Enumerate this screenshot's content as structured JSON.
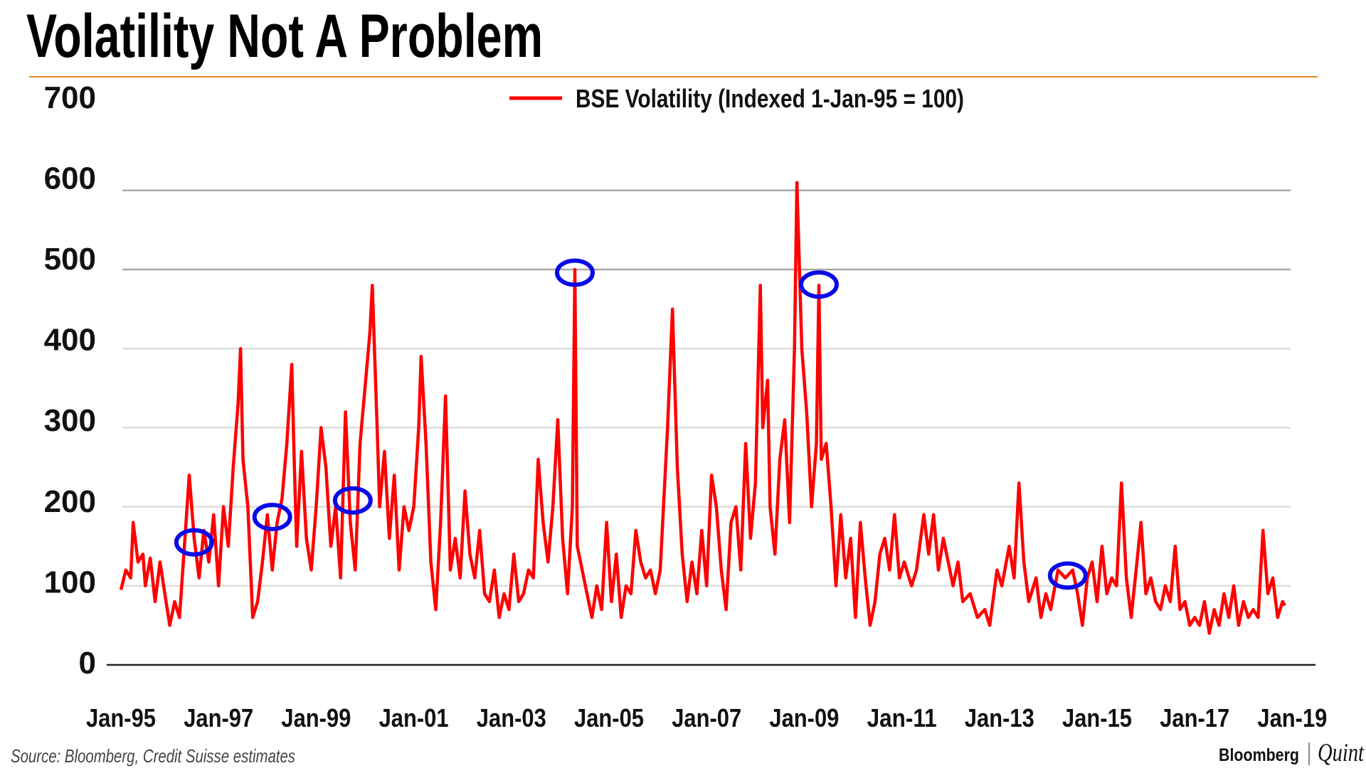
{
  "title": "Volatility Not A Problem",
  "source": "Source: Bloomberg, Credit Suisse estimates",
  "logo": {
    "left": "Bloomberg",
    "right": "Quint"
  },
  "colors": {
    "series": "#ff0000",
    "circle": "#0a0ae6",
    "rule": "#e08a2a"
  },
  "chart_data": {
    "type": "line",
    "title": "Volatility Not A Problem",
    "xlabel": "",
    "ylabel": "",
    "ylim": [
      0,
      700
    ],
    "xlim": [
      1995,
      2019
    ],
    "y_ticks": [
      0,
      100,
      200,
      300,
      400,
      500,
      600,
      700
    ],
    "y_tick_labels": [
      "0",
      "100",
      "200",
      "300",
      "400",
      "500",
      "600",
      "700"
    ],
    "gridlines": [
      100,
      200,
      300,
      400,
      500,
      600
    ],
    "x_ticks": [
      1995,
      1997,
      1999,
      2001,
      2003,
      2005,
      2007,
      2009,
      2011,
      2013,
      2015,
      2017,
      2019
    ],
    "x_tick_labels": [
      "Jan-95",
      "Jan-97",
      "Jan-99",
      "Jan-01",
      "Jan-03",
      "Jan-05",
      "Jan-07",
      "Jan-09",
      "Jan-11",
      "Jan-13",
      "Jan-15",
      "Jan-17",
      "Jan-19"
    ],
    "legend_placement": "top-center",
    "series": [
      {
        "name": "BSE Volatility (Indexed 1-Jan-95 = 100)",
        "points": [
          [
            1995.0,
            95
          ],
          [
            1995.1,
            120
          ],
          [
            1995.2,
            110
          ],
          [
            1995.25,
            180
          ],
          [
            1995.35,
            130
          ],
          [
            1995.45,
            140
          ],
          [
            1995.5,
            100
          ],
          [
            1995.6,
            135
          ],
          [
            1995.7,
            80
          ],
          [
            1995.8,
            130
          ],
          [
            1995.9,
            90
          ],
          [
            1996.0,
            50
          ],
          [
            1996.1,
            80
          ],
          [
            1996.2,
            60
          ],
          [
            1996.3,
            150
          ],
          [
            1996.4,
            240
          ],
          [
            1996.5,
            160
          ],
          [
            1996.6,
            110
          ],
          [
            1996.7,
            170
          ],
          [
            1996.8,
            130
          ],
          [
            1996.9,
            190
          ],
          [
            1997.0,
            100
          ],
          [
            1997.1,
            200
          ],
          [
            1997.2,
            150
          ],
          [
            1997.3,
            250
          ],
          [
            1997.4,
            330
          ],
          [
            1997.45,
            400
          ],
          [
            1997.5,
            260
          ],
          [
            1997.6,
            200
          ],
          [
            1997.7,
            60
          ],
          [
            1997.8,
            80
          ],
          [
            1997.9,
            130
          ],
          [
            1998.0,
            190
          ],
          [
            1998.1,
            120
          ],
          [
            1998.2,
            180
          ],
          [
            1998.3,
            210
          ],
          [
            1998.4,
            280
          ],
          [
            1998.5,
            380
          ],
          [
            1998.55,
            260
          ],
          [
            1998.6,
            150
          ],
          [
            1998.7,
            270
          ],
          [
            1998.8,
            160
          ],
          [
            1998.9,
            120
          ],
          [
            1999.0,
            200
          ],
          [
            1999.1,
            300
          ],
          [
            1999.2,
            250
          ],
          [
            1999.3,
            150
          ],
          [
            1999.4,
            200
          ],
          [
            1999.5,
            110
          ],
          [
            1999.6,
            320
          ],
          [
            1999.7,
            180
          ],
          [
            1999.8,
            120
          ],
          [
            1999.9,
            280
          ],
          [
            2000.0,
            350
          ],
          [
            2000.1,
            420
          ],
          [
            2000.15,
            480
          ],
          [
            2000.25,
            300
          ],
          [
            2000.3,
            200
          ],
          [
            2000.4,
            270
          ],
          [
            2000.5,
            160
          ],
          [
            2000.6,
            240
          ],
          [
            2000.7,
            120
          ],
          [
            2000.8,
            200
          ],
          [
            2000.9,
            170
          ],
          [
            2001.0,
            200
          ],
          [
            2001.1,
            300
          ],
          [
            2001.15,
            390
          ],
          [
            2001.25,
            280
          ],
          [
            2001.35,
            130
          ],
          [
            2001.45,
            70
          ],
          [
            2001.55,
            180
          ],
          [
            2001.65,
            340
          ],
          [
            2001.75,
            120
          ],
          [
            2001.85,
            160
          ],
          [
            2001.95,
            110
          ],
          [
            2002.05,
            220
          ],
          [
            2002.15,
            140
          ],
          [
            2002.25,
            110
          ],
          [
            2002.35,
            170
          ],
          [
            2002.45,
            90
          ],
          [
            2002.55,
            80
          ],
          [
            2002.65,
            120
          ],
          [
            2002.75,
            60
          ],
          [
            2002.85,
            90
          ],
          [
            2002.95,
            70
          ],
          [
            2003.05,
            140
          ],
          [
            2003.15,
            80
          ],
          [
            2003.25,
            90
          ],
          [
            2003.35,
            120
          ],
          [
            2003.45,
            110
          ],
          [
            2003.55,
            260
          ],
          [
            2003.65,
            180
          ],
          [
            2003.75,
            130
          ],
          [
            2003.85,
            200
          ],
          [
            2003.95,
            310
          ],
          [
            2004.05,
            160
          ],
          [
            2004.15,
            90
          ],
          [
            2004.25,
            200
          ],
          [
            2004.3,
            500
          ],
          [
            2004.35,
            150
          ],
          [
            2004.45,
            120
          ],
          [
            2004.55,
            90
          ],
          [
            2004.65,
            60
          ],
          [
            2004.75,
            100
          ],
          [
            2004.85,
            70
          ],
          [
            2004.95,
            180
          ],
          [
            2005.05,
            80
          ],
          [
            2005.15,
            140
          ],
          [
            2005.25,
            60
          ],
          [
            2005.35,
            100
          ],
          [
            2005.45,
            90
          ],
          [
            2005.55,
            170
          ],
          [
            2005.65,
            130
          ],
          [
            2005.75,
            110
          ],
          [
            2005.85,
            120
          ],
          [
            2005.95,
            90
          ],
          [
            2006.05,
            120
          ],
          [
            2006.2,
            300
          ],
          [
            2006.3,
            450
          ],
          [
            2006.4,
            250
          ],
          [
            2006.5,
            140
          ],
          [
            2006.6,
            80
          ],
          [
            2006.7,
            130
          ],
          [
            2006.8,
            90
          ],
          [
            2006.9,
            170
          ],
          [
            2007.0,
            100
          ],
          [
            2007.1,
            240
          ],
          [
            2007.2,
            200
          ],
          [
            2007.3,
            120
          ],
          [
            2007.4,
            70
          ],
          [
            2007.5,
            180
          ],
          [
            2007.6,
            200
          ],
          [
            2007.7,
            120
          ],
          [
            2007.8,
            280
          ],
          [
            2007.9,
            160
          ],
          [
            2008.0,
            230
          ],
          [
            2008.1,
            480
          ],
          [
            2008.15,
            300
          ],
          [
            2008.25,
            360
          ],
          [
            2008.3,
            200
          ],
          [
            2008.4,
            140
          ],
          [
            2008.5,
            260
          ],
          [
            2008.6,
            310
          ],
          [
            2008.7,
            180
          ],
          [
            2008.8,
            400
          ],
          [
            2008.85,
            610
          ],
          [
            2008.95,
            400
          ],
          [
            2009.05,
            320
          ],
          [
            2009.15,
            200
          ],
          [
            2009.25,
            280
          ],
          [
            2009.3,
            480
          ],
          [
            2009.35,
            260
          ],
          [
            2009.45,
            280
          ],
          [
            2009.55,
            200
          ],
          [
            2009.65,
            100
          ],
          [
            2009.75,
            190
          ],
          [
            2009.85,
            110
          ],
          [
            2009.95,
            160
          ],
          [
            2010.05,
            60
          ],
          [
            2010.15,
            180
          ],
          [
            2010.25,
            110
          ],
          [
            2010.35,
            50
          ],
          [
            2010.45,
            80
          ],
          [
            2010.55,
            140
          ],
          [
            2010.65,
            160
          ],
          [
            2010.75,
            120
          ],
          [
            2010.85,
            190
          ],
          [
            2010.95,
            110
          ],
          [
            2011.05,
            130
          ],
          [
            2011.2,
            100
          ],
          [
            2011.3,
            120
          ],
          [
            2011.45,
            190
          ],
          [
            2011.55,
            140
          ],
          [
            2011.65,
            190
          ],
          [
            2011.75,
            120
          ],
          [
            2011.85,
            160
          ],
          [
            2011.95,
            130
          ],
          [
            2012.05,
            100
          ],
          [
            2012.15,
            130
          ],
          [
            2012.25,
            80
          ],
          [
            2012.4,
            90
          ],
          [
            2012.55,
            60
          ],
          [
            2012.7,
            70
          ],
          [
            2012.8,
            50
          ],
          [
            2012.95,
            120
          ],
          [
            2013.05,
            100
          ],
          [
            2013.2,
            150
          ],
          [
            2013.3,
            110
          ],
          [
            2013.4,
            230
          ],
          [
            2013.5,
            130
          ],
          [
            2013.6,
            80
          ],
          [
            2013.75,
            110
          ],
          [
            2013.85,
            60
          ],
          [
            2013.95,
            90
          ],
          [
            2014.05,
            70
          ],
          [
            2014.2,
            120
          ],
          [
            2014.35,
            110
          ],
          [
            2014.5,
            120
          ],
          [
            2014.6,
            90
          ],
          [
            2014.7,
            50
          ],
          [
            2014.8,
            110
          ],
          [
            2014.9,
            130
          ],
          [
            2015.0,
            80
          ],
          [
            2015.1,
            150
          ],
          [
            2015.2,
            90
          ],
          [
            2015.3,
            110
          ],
          [
            2015.4,
            100
          ],
          [
            2015.5,
            230
          ],
          [
            2015.6,
            110
          ],
          [
            2015.7,
            60
          ],
          [
            2015.8,
            120
          ],
          [
            2015.9,
            180
          ],
          [
            2016.0,
            90
          ],
          [
            2016.1,
            110
          ],
          [
            2016.2,
            80
          ],
          [
            2016.3,
            70
          ],
          [
            2016.4,
            100
          ],
          [
            2016.5,
            80
          ],
          [
            2016.6,
            150
          ],
          [
            2016.7,
            70
          ],
          [
            2016.8,
            80
          ],
          [
            2016.9,
            50
          ],
          [
            2017.0,
            60
          ],
          [
            2017.1,
            50
          ],
          [
            2017.2,
            80
          ],
          [
            2017.3,
            40
          ],
          [
            2017.4,
            70
          ],
          [
            2017.5,
            50
          ],
          [
            2017.6,
            90
          ],
          [
            2017.7,
            60
          ],
          [
            2017.8,
            100
          ],
          [
            2017.9,
            50
          ],
          [
            2018.0,
            80
          ],
          [
            2018.1,
            60
          ],
          [
            2018.2,
            70
          ],
          [
            2018.3,
            60
          ],
          [
            2018.4,
            170
          ],
          [
            2018.5,
            90
          ],
          [
            2018.6,
            110
          ],
          [
            2018.7,
            60
          ],
          [
            2018.8,
            80
          ],
          [
            2018.85,
            75
          ]
        ]
      }
    ],
    "annotations": [
      {
        "type": "circle",
        "x": 1996.5,
        "y": 155
      },
      {
        "type": "circle",
        "x": 1998.1,
        "y": 187
      },
      {
        "type": "circle",
        "x": 1999.75,
        "y": 208
      },
      {
        "type": "circle",
        "x": 2004.3,
        "y": 496
      },
      {
        "type": "circle",
        "x": 2009.3,
        "y": 481
      },
      {
        "type": "circle",
        "x": 2014.4,
        "y": 113
      }
    ]
  }
}
